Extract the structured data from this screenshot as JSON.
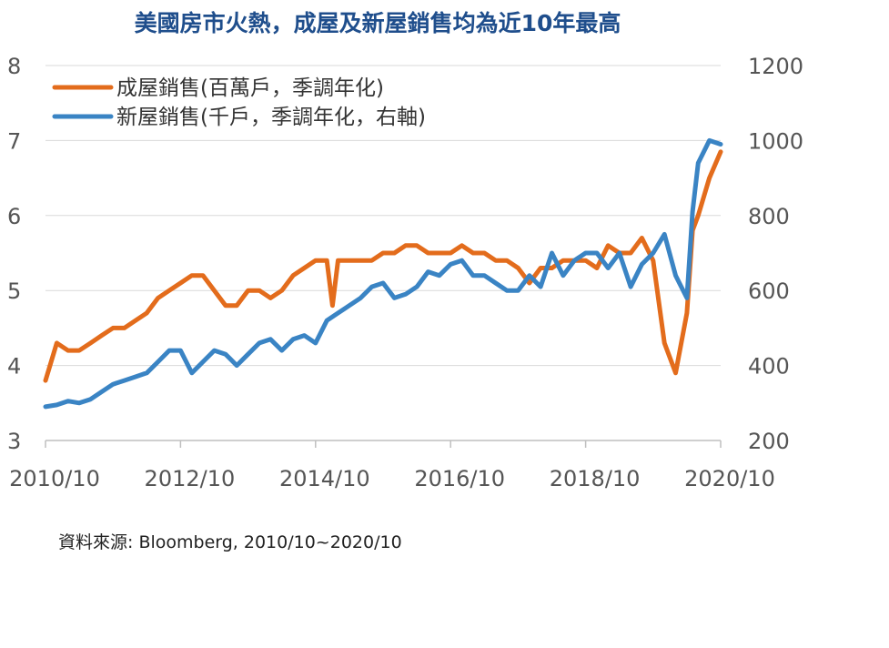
{
  "title": "美國房市火熱，成屋及新屋銷售均為近10年最高",
  "source": "資料來源: Bloomberg, 2010/10~2020/10",
  "chart_data": {
    "type": "line",
    "title": "美國房市火熱，成屋及新屋銷售均為近10年最高",
    "x_tick_labels": [
      "2010/10",
      "2012/10",
      "2014/10",
      "2016/10",
      "2018/10",
      "2020/10"
    ],
    "y_left": {
      "ticks": [
        3,
        4,
        5,
        6,
        7,
        8
      ],
      "range": [
        3,
        8
      ]
    },
    "y_right": {
      "ticks": [
        200,
        400,
        600,
        800,
        1000,
        1200
      ],
      "range": [
        200,
        1200
      ]
    },
    "grid": "horizontal",
    "legend_position": "top-left",
    "colors": {
      "existing": "#e36c1c",
      "new": "#3a84c4"
    },
    "series": [
      {
        "name": "成屋銷售(百萬戶，季調年化)",
        "axis": "left",
        "x": [
          "2010/10",
          "2010/12",
          "2011/02",
          "2011/04",
          "2011/06",
          "2011/08",
          "2011/10",
          "2011/12",
          "2012/02",
          "2012/04",
          "2012/06",
          "2012/08",
          "2012/10",
          "2012/12",
          "2013/02",
          "2013/04",
          "2013/06",
          "2013/08",
          "2013/10",
          "2013/12",
          "2014/02",
          "2014/04",
          "2014/06",
          "2014/08",
          "2014/10",
          "2014/12",
          "2015/01",
          "2015/02",
          "2015/04",
          "2015/06",
          "2015/08",
          "2015/10",
          "2015/12",
          "2016/02",
          "2016/04",
          "2016/06",
          "2016/08",
          "2016/10",
          "2016/12",
          "2017/02",
          "2017/04",
          "2017/06",
          "2017/08",
          "2017/10",
          "2017/12",
          "2018/02",
          "2018/04",
          "2018/06",
          "2018/08",
          "2018/10",
          "2018/12",
          "2019/02",
          "2019/04",
          "2019/06",
          "2019/08",
          "2019/10",
          "2019/12",
          "2020/02",
          "2020/04",
          "2020/05",
          "2020/06",
          "2020/08",
          "2020/10"
        ],
        "values": [
          3.8,
          4.3,
          4.2,
          4.2,
          4.3,
          4.4,
          4.5,
          4.5,
          4.6,
          4.7,
          4.9,
          5.0,
          5.1,
          5.2,
          5.2,
          5.0,
          4.8,
          4.8,
          5.0,
          5.0,
          4.9,
          5.0,
          5.2,
          5.3,
          5.4,
          5.4,
          4.8,
          5.4,
          5.4,
          5.4,
          5.4,
          5.5,
          5.5,
          5.6,
          5.6,
          5.5,
          5.5,
          5.5,
          5.6,
          5.5,
          5.5,
          5.4,
          5.4,
          5.3,
          5.1,
          5.3,
          5.3,
          5.4,
          5.4,
          5.4,
          5.3,
          5.6,
          5.5,
          5.5,
          5.7,
          5.4,
          4.3,
          3.9,
          4.7,
          5.8,
          6.0,
          6.5,
          6.85
        ]
      },
      {
        "name": "新屋銷售(千戶，季調年化，右軸)",
        "axis": "right",
        "x": [
          "2010/10",
          "2010/12",
          "2011/02",
          "2011/04",
          "2011/06",
          "2011/08",
          "2011/10",
          "2011/12",
          "2012/02",
          "2012/04",
          "2012/06",
          "2012/08",
          "2012/10",
          "2012/12",
          "2013/02",
          "2013/04",
          "2013/06",
          "2013/08",
          "2013/10",
          "2013/12",
          "2014/02",
          "2014/04",
          "2014/06",
          "2014/08",
          "2014/10",
          "2014/12",
          "2015/02",
          "2015/04",
          "2015/06",
          "2015/08",
          "2015/10",
          "2015/12",
          "2016/02",
          "2016/04",
          "2016/06",
          "2016/08",
          "2016/10",
          "2016/12",
          "2017/02",
          "2017/04",
          "2017/06",
          "2017/08",
          "2017/10",
          "2017/12",
          "2018/02",
          "2018/04",
          "2018/06",
          "2018/08",
          "2018/10",
          "2018/12",
          "2019/02",
          "2019/04",
          "2019/06",
          "2019/08",
          "2019/10",
          "2019/12",
          "2020/02",
          "2020/04",
          "2020/05",
          "2020/06",
          "2020/08",
          "2020/10"
        ],
        "values": [
          290,
          295,
          305,
          300,
          310,
          330,
          350,
          360,
          370,
          380,
          410,
          440,
          440,
          380,
          410,
          440,
          430,
          400,
          430,
          460,
          470,
          440,
          470,
          480,
          460,
          520,
          540,
          560,
          580,
          610,
          620,
          580,
          590,
          610,
          650,
          640,
          670,
          680,
          640,
          640,
          620,
          600,
          600,
          640,
          610,
          700,
          640,
          680,
          700,
          700,
          660,
          700,
          610,
          670,
          700,
          750,
          640,
          580,
          810,
          940,
          1000,
          990
        ]
      }
    ]
  }
}
